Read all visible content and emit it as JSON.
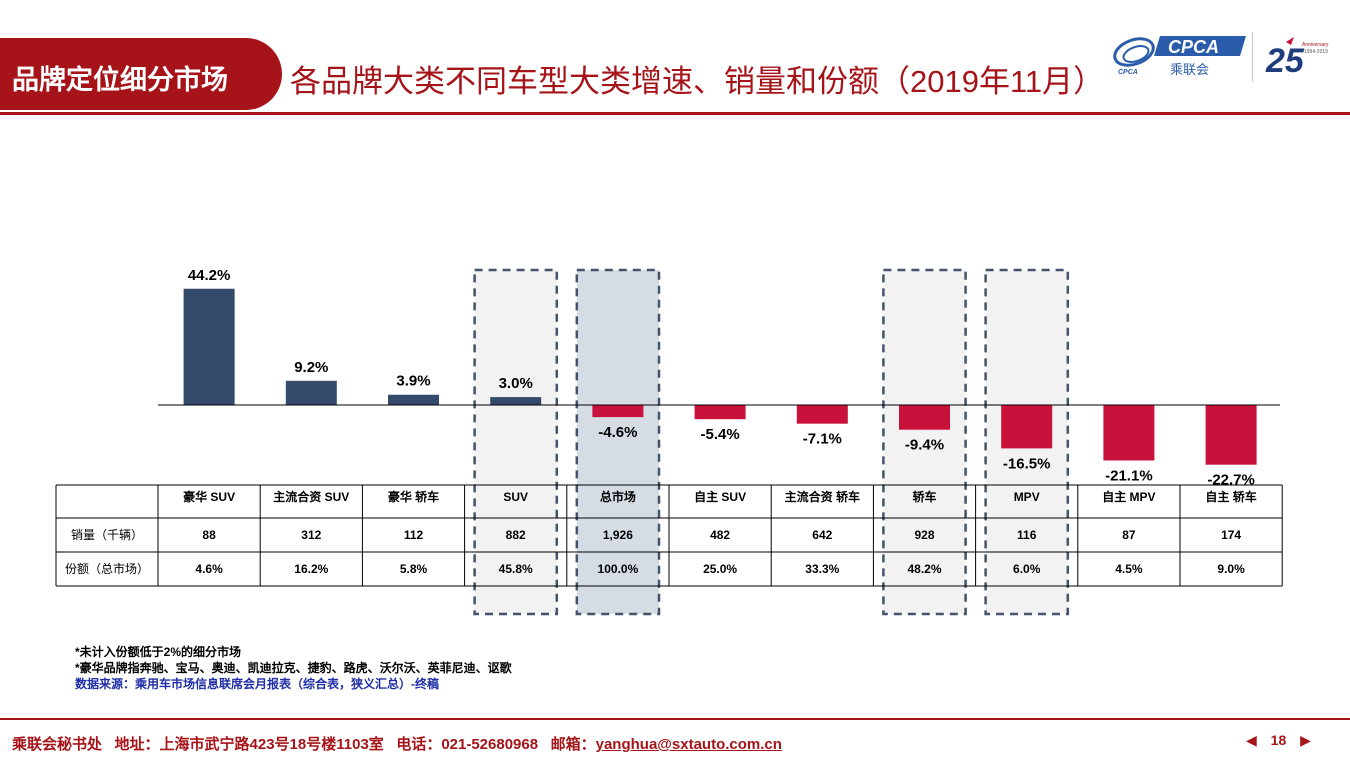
{
  "header": {
    "section_label": "品牌定位细分市场",
    "title": "各品牌大类不同车型大类增速、销量和份额（2019年11月）",
    "logo_primary": "CPCA",
    "logo_primary_sub": "乘联会",
    "logo_left_text": "CPCA",
    "logo_anniversary_number": "25",
    "logo_anniversary_text": "Anniversary",
    "logo_anniversary_years": "1994-2019"
  },
  "colors": {
    "brand_red": "#a6141a",
    "positive_bar": "#344a6a",
    "negative_bar": "#c8113b",
    "highlight_bg": "#f2f2f2",
    "total_highlight_bg": "#d6dce4",
    "dash_border": "#44546a"
  },
  "chart_data": {
    "type": "bar",
    "categories": [
      "豪华 SUV",
      "主流合资 SUV",
      "豪华 轿车",
      "SUV",
      "总市场",
      "自主 SUV",
      "主流合资 轿车",
      "轿车",
      "MPV",
      "自主 MPV",
      "自主 轿车"
    ],
    "values": [
      44.2,
      9.2,
      3.9,
      3.0,
      -4.6,
      -5.4,
      -7.1,
      -9.4,
      -16.5,
      -21.1,
      -22.7
    ],
    "value_labels": [
      "44.2%",
      "9.2%",
      "3.9%",
      "3.0%",
      "-4.6%",
      "-5.4%",
      "-7.1%",
      "-9.4%",
      "-16.5%",
      "-21.1%",
      "-22.7%"
    ],
    "ylim": [
      -25,
      50
    ],
    "highlighted_categories": [
      "SUV",
      "总市场",
      "轿车",
      "MPV"
    ],
    "grid": false,
    "legend": "none"
  },
  "table": {
    "header_blank": "",
    "rows": [
      {
        "label": "销量（千辆）",
        "values": [
          "88",
          "312",
          "112",
          "882",
          "1,926",
          "482",
          "642",
          "928",
          "116",
          "87",
          "174"
        ]
      },
      {
        "label": "份额（总市场）",
        "values": [
          "4.6%",
          "16.2%",
          "5.8%",
          "45.8%",
          "100.0%",
          "25.0%",
          "33.3%",
          "48.2%",
          "6.0%",
          "4.5%",
          "9.0%"
        ]
      }
    ]
  },
  "notes": {
    "line1": "*未计入份额低于2%的细分市场",
    "line2": "*豪华品牌指奔驰、宝马、奥迪、凯迪拉克、捷豹、路虎、沃尔沃、英菲尼迪、讴歌",
    "source": "数据来源：乘用车市场信息联席会月报表（综合表，狭义汇总）-终稿"
  },
  "footer": {
    "org": "乘联会秘书处",
    "address": "地址：上海市武宁路423号18号楼1103室",
    "phone": "电话：021-52680968",
    "email_label": "邮箱：",
    "email": "yanghua@sxtauto.com.cn",
    "page": "18"
  }
}
